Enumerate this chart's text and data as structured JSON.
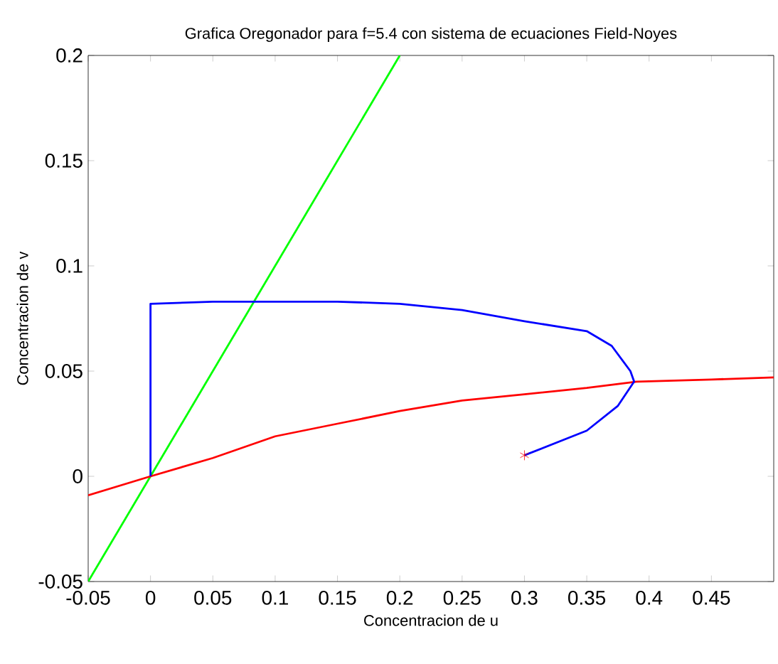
{
  "chart_data": {
    "type": "line",
    "title": "Grafica Oregonador para f=5.4 con sistema de ecuaciones Field-Noyes",
    "xlabel": "Concentracion de u",
    "ylabel": "Concentracion de v",
    "xlim": [
      -0.05,
      0.5
    ],
    "ylim": [
      -0.05,
      0.2
    ],
    "xticks": [
      -0.05,
      0,
      0.05,
      0.1,
      0.15,
      0.2,
      0.25,
      0.3,
      0.35,
      0.4,
      0.45
    ],
    "yticks": [
      -0.05,
      0,
      0.05,
      0.1,
      0.15,
      0.2
    ],
    "grid": false,
    "series": [
      {
        "color": "#00ff00",
        "x": [
          -0.05,
          0.2
        ],
        "values": [
          -0.05,
          0.2
        ]
      },
      {
        "color": "#ff0000",
        "x": [
          -0.05,
          0,
          0.05,
          0.1,
          0.15,
          0.2,
          0.25,
          0.3,
          0.35,
          0.39,
          0.45,
          0.5
        ],
        "values": [
          -0.009,
          0,
          0.0087,
          0.019,
          0.025,
          0.031,
          0.036,
          0.039,
          0.042,
          0.045,
          0.046,
          0.047
        ]
      },
      {
        "color": "#0000ff",
        "x": [
          0.3,
          0.35,
          0.375,
          0.388,
          0.385,
          0.37,
          0.35,
          0.3,
          0.25,
          0.2,
          0.15,
          0.1,
          0.05,
          0,
          0
        ],
        "values": [
          0.01,
          0.0217,
          0.0335,
          0.045,
          0.05,
          0.062,
          0.069,
          0.0737,
          0.079,
          0.082,
          0.083,
          0.083,
          0.083,
          0.082,
          0
        ]
      },
      {
        "type": "scatter",
        "marker": "cross",
        "color": "#ff0000",
        "x": [
          0.3
        ],
        "values": [
          0.01
        ]
      }
    ]
  }
}
